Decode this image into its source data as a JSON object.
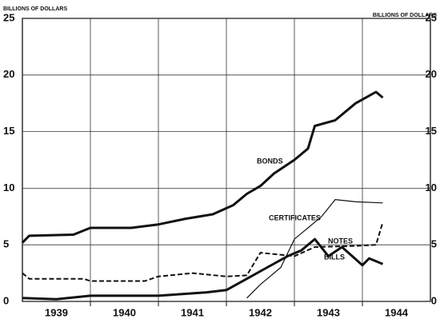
{
  "chart_data": {
    "type": "line",
    "y_label_left": "BILLIONS OF DOLLARS",
    "y_label_right": "BILLIONS OF DOLLARS",
    "xlim": [
      1939,
      1945
    ],
    "xticks": [
      {
        "value": 1939.5,
        "label": "1939"
      },
      {
        "value": 1940.5,
        "label": "1940"
      },
      {
        "value": 1941.5,
        "label": "1941"
      },
      {
        "value": 1942.5,
        "label": "1942"
      },
      {
        "value": 1943.5,
        "label": "1943"
      },
      {
        "value": 1944.5,
        "label": "1944"
      }
    ],
    "xgrid": [
      1940,
      1941,
      1942,
      1943,
      1944
    ],
    "ylim": [
      0,
      25
    ],
    "yticks": [
      0,
      5,
      10,
      15,
      20,
      25
    ],
    "grid": true,
    "series": [
      {
        "name": "BONDS",
        "color": "#111",
        "line_style": "bold",
        "x": [
          1939.0,
          1939.1,
          1939.75,
          1940.0,
          1940.6,
          1941.0,
          1941.4,
          1941.8,
          1942.1,
          1942.3,
          1942.5,
          1942.7,
          1943.0,
          1943.2,
          1943.3,
          1943.6,
          1943.9,
          1944.2,
          1944.3
        ],
        "values": [
          5.2,
          5.8,
          5.9,
          6.5,
          6.5,
          6.8,
          7.3,
          7.7,
          8.5,
          9.5,
          10.2,
          11.3,
          12.5,
          13.5,
          15.5,
          16.0,
          17.5,
          18.5,
          18.0
        ]
      },
      {
        "name": "CERTIFICATES",
        "color": "#111",
        "line_style": "thin",
        "x": [
          1942.3,
          1942.5,
          1942.8,
          1943.0,
          1943.2,
          1943.4,
          1943.6,
          1943.9,
          1944.3
        ],
        "values": [
          0.3,
          1.5,
          3.0,
          5.5,
          6.5,
          7.5,
          9.0,
          8.8,
          8.7
        ]
      },
      {
        "name": "NOTES",
        "color": "#111",
        "line_style": "dashed",
        "x": [
          1939.0,
          1939.1,
          1939.9,
          1940.0,
          1940.8,
          1941.0,
          1941.5,
          1942.0,
          1942.3,
          1942.5,
          1943.0,
          1943.3,
          1943.9,
          1944.2,
          1944.3
        ],
        "values": [
          2.5,
          2.0,
          2.0,
          1.8,
          1.8,
          2.2,
          2.5,
          2.2,
          2.3,
          4.3,
          4.0,
          4.8,
          4.9,
          5.0,
          7.0
        ]
      },
      {
        "name": "BILLS",
        "color": "#111",
        "line_style": "bold",
        "x": [
          1939.0,
          1939.5,
          1940.0,
          1941.0,
          1941.7,
          1942.0,
          1942.3,
          1942.6,
          1942.9,
          1943.1,
          1943.3,
          1943.5,
          1943.7,
          1944.0,
          1944.1,
          1944.3
        ],
        "values": [
          0.3,
          0.2,
          0.5,
          0.5,
          0.8,
          1.0,
          2.0,
          3.0,
          4.0,
          4.5,
          5.5,
          4.0,
          4.8,
          3.2,
          3.8,
          3.3
        ]
      }
    ]
  }
}
